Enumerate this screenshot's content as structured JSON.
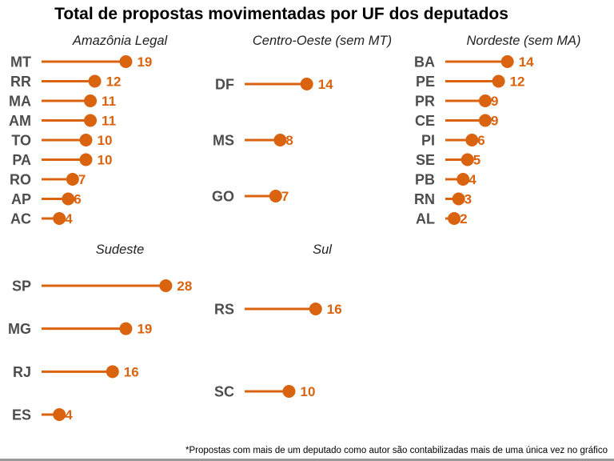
{
  "chart_data": {
    "type": "lollipop",
    "title": "Total de propostas movimentadas por UF dos deputados",
    "footnote": "*Propostas com mais de um deputado como autor são contabilizadas mais de uma única vez no gráfico",
    "color": "#d9630f",
    "label_color": "#4d4d4d",
    "xlim": [
      0,
      30
    ],
    "grid": false,
    "panels": [
      {
        "name": "Amazônia Legal",
        "categories": [
          "MT",
          "RR",
          "MA",
          "AM",
          "TO",
          "PA",
          "RO",
          "AP",
          "AC"
        ],
        "values": [
          19,
          12,
          11,
          11,
          10,
          10,
          7,
          6,
          4
        ]
      },
      {
        "name": "Centro-Oeste (sem MT)",
        "categories": [
          "DF",
          "MS",
          "GO"
        ],
        "values": [
          14,
          8,
          7
        ]
      },
      {
        "name": "Nordeste (sem MA)",
        "categories": [
          "BA",
          "PE",
          "PR",
          "CE",
          "PI",
          "SE",
          "PB",
          "RN",
          "AL"
        ],
        "values": [
          14,
          12,
          9,
          9,
          6,
          5,
          4,
          3,
          2
        ]
      },
      {
        "name": "Sudeste",
        "categories": [
          "SP",
          "MG",
          "RJ",
          "ES"
        ],
        "values": [
          28,
          19,
          16,
          4
        ]
      },
      {
        "name": "Sul",
        "categories": [
          "RS",
          "SC"
        ],
        "values": [
          16,
          10
        ]
      }
    ]
  }
}
